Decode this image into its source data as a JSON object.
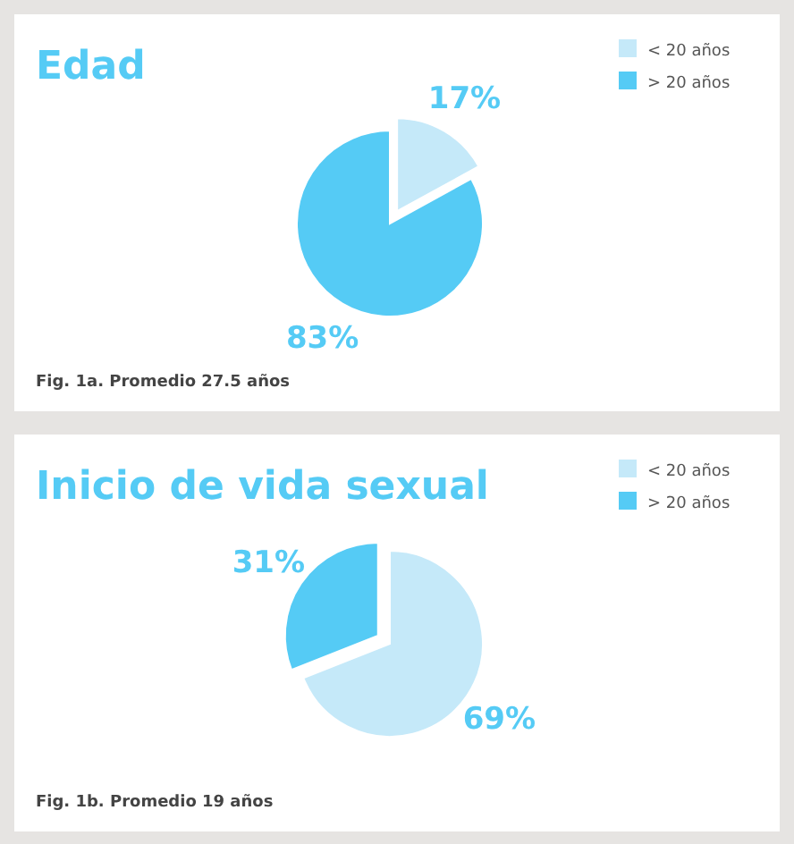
{
  "chart_data": [
    {
      "type": "pie",
      "title": "Edad",
      "categories": [
        "< 20 años",
        "> 20 años"
      ],
      "values": [
        17,
        83
      ],
      "colors": [
        "#c5e9f9",
        "#55cbf5"
      ],
      "value_labels": [
        "17%",
        "83%"
      ],
      "legend": "top right",
      "annotations": [
        "Fig. 1a. Promedio 27.5 años"
      ]
    },
    {
      "type": "pie",
      "title": "Inicio de vida sexual",
      "categories": [
        "< 20 años",
        "> 20 años"
      ],
      "values": [
        69,
        31
      ],
      "colors": [
        "#c5e9f9",
        "#55cbf5"
      ],
      "value_labels": [
        "69%",
        "31%"
      ],
      "legend": "top right",
      "annotations": [
        "Fig. 1b. Promedio 19 años"
      ]
    }
  ]
}
